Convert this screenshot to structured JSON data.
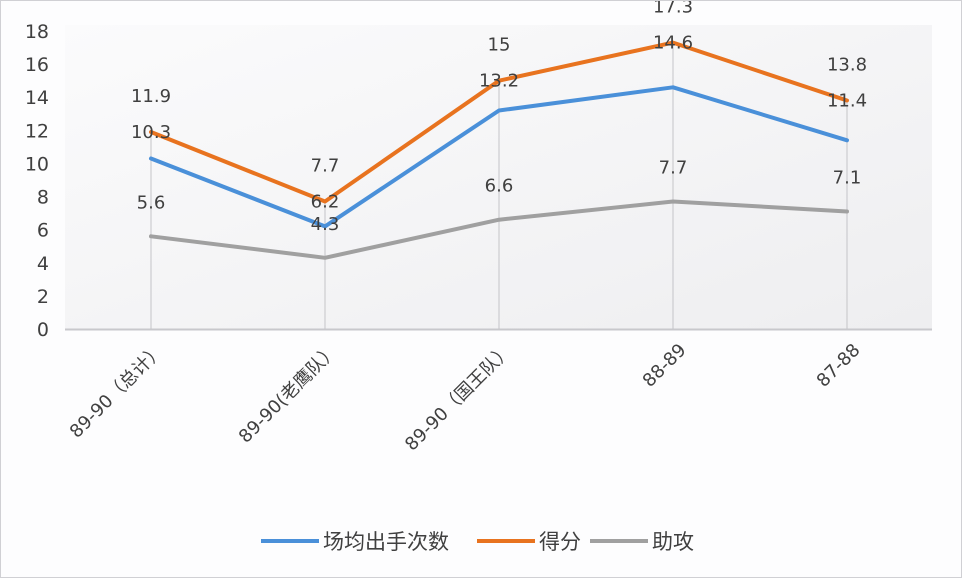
{
  "chart_data": {
    "type": "line",
    "title": "",
    "xlabel": "",
    "ylabel": "",
    "ylim": [
      0,
      18
    ],
    "yticks": [
      0,
      2,
      4,
      6,
      8,
      10,
      12,
      14,
      16,
      18
    ],
    "grid": "vertical category lines",
    "legend_position": "bottom",
    "categories": [
      "89-90（总计）",
      "89-90(老鹰队）",
      "89-90（国王队）",
      "88-89",
      "87-88"
    ],
    "series": [
      {
        "name": "场均出手次数",
        "color": "#4a90d9",
        "values": [
          10.3,
          6.2,
          13.2,
          14.6,
          11.4
        ]
      },
      {
        "name": "得分",
        "color": "#e8731f",
        "values": [
          11.9,
          7.7,
          15,
          17.3,
          13.8
        ]
      },
      {
        "name": "助攻",
        "color": "#a0a0a0",
        "values": [
          5.6,
          4.3,
          6.6,
          7.7,
          7.1
        ]
      }
    ]
  }
}
